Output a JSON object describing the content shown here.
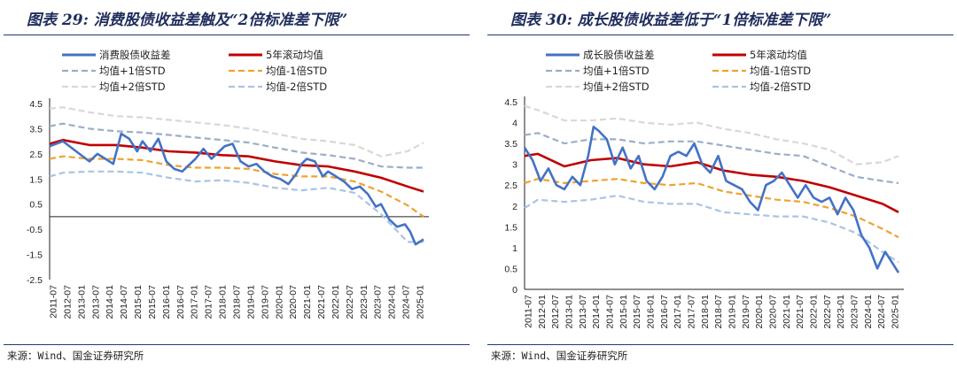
{
  "charts": [
    {
      "title": "图表 29: 消费股债收益差触及“2倍标准差下限”",
      "source": "来源：Wind、国金证券研究所",
      "chart_data": {
        "type": "line",
        "title": "图表 29: 消费股债收益差触及“2倍标准差下限”",
        "xlabel": "",
        "ylabel": "",
        "ylim": [
          -2.5,
          4.5
        ],
        "yticks": [
          "4.5",
          "3.5",
          "2.5",
          "1.5",
          "0.5",
          "-0.5",
          "-1.5",
          "-2.5"
        ],
        "xticks": [
          "2011-07",
          "2012-07",
          "2013-01",
          "2013-07",
          "2014-01",
          "2014-07",
          "2015-01",
          "2015-07",
          "2016-01",
          "2016-07",
          "2017-01",
          "2017-07",
          "2018-01",
          "2018-07",
          "2019-01",
          "2019-07",
          "2020-01",
          "2020-07",
          "2021-01",
          "2021-07",
          "2022-01",
          "2022-07",
          "2023-01",
          "2023-07",
          "2024-01",
          "2024-07",
          "2025-01"
        ],
        "x_start": 2011.5,
        "x_end": 2025.6,
        "grid": false,
        "legend_position": "top",
        "legend": [
          "消费股债收益差",
          "5年滚动均值",
          "均值+1倍STD",
          "均值-1倍STD",
          "均值+2倍STD",
          "均值-2倍STD"
        ],
        "series": [
          {
            "name": "消费股债收益差",
            "color": "#4472c4",
            "style": "solid",
            "x": [
              2011.5,
              2012.0,
              2012.5,
              2013.0,
              2013.3,
              2013.6,
              2013.9,
              2014.2,
              2014.5,
              2014.8,
              2015.0,
              2015.3,
              2015.6,
              2015.9,
              2016.2,
              2016.5,
              2016.8,
              2017.0,
              2017.3,
              2017.6,
              2017.9,
              2018.1,
              2018.4,
              2018.7,
              2019.0,
              2019.3,
              2019.6,
              2019.9,
              2020.2,
              2020.5,
              2020.8,
              2021.0,
              2021.2,
              2021.5,
              2021.8,
              2022.0,
              2022.3,
              2022.6,
              2022.9,
              2023.2,
              2023.5,
              2023.8,
              2024.0,
              2024.3,
              2024.6,
              2024.9,
              2025.1,
              2025.3,
              2025.6
            ],
            "values": [
              2.8,
              3.0,
              2.6,
              2.2,
              2.5,
              2.3,
              2.1,
              3.3,
              3.1,
              2.6,
              3.0,
              2.6,
              3.1,
              2.2,
              1.9,
              1.8,
              2.1,
              2.3,
              2.7,
              2.3,
              2.6,
              2.8,
              2.9,
              2.2,
              2.0,
              2.1,
              1.8,
              1.6,
              1.5,
              1.3,
              1.7,
              2.1,
              2.3,
              2.2,
              1.6,
              1.8,
              1.6,
              1.4,
              1.1,
              1.2,
              0.9,
              0.4,
              0.5,
              -0.1,
              -0.4,
              -0.3,
              -0.6,
              -1.1,
              -0.9
            ]
          },
          {
            "name": "5年滚动均值",
            "color": "#c00000",
            "style": "solid",
            "x": [
              2011.5,
              2012.0,
              2013.0,
              2014.0,
              2015.0,
              2016.0,
              2017.0,
              2018.0,
              2019.0,
              2020.0,
              2021.0,
              2022.0,
              2023.0,
              2024.0,
              2025.0,
              2025.6
            ],
            "values": [
              2.9,
              3.05,
              2.85,
              2.85,
              2.75,
              2.6,
              2.55,
              2.45,
              2.4,
              2.2,
              2.05,
              2.0,
              1.8,
              1.55,
              1.2,
              1.0
            ]
          },
          {
            "name": "均值+1倍STD",
            "color": "#9aaec8",
            "style": "dash",
            "x": [
              2011.5,
              2012.0,
              2013.0,
              2014.0,
              2015.0,
              2016.0,
              2017.0,
              2018.0,
              2019.0,
              2020.0,
              2021.0,
              2022.0,
              2023.0,
              2024.0,
              2025.0,
              2025.6
            ],
            "values": [
              3.6,
              3.7,
              3.5,
              3.4,
              3.35,
              3.25,
              3.15,
              3.05,
              2.95,
              2.75,
              2.55,
              2.45,
              2.3,
              2.0,
              1.95,
              1.95
            ]
          },
          {
            "name": "均值-1倍STD",
            "color": "#f0a22e",
            "style": "dash",
            "x": [
              2011.5,
              2012.0,
              2013.0,
              2014.0,
              2015.0,
              2016.0,
              2017.0,
              2018.0,
              2019.0,
              2020.0,
              2021.0,
              2022.0,
              2023.0,
              2024.0,
              2025.0,
              2025.6
            ],
            "values": [
              2.3,
              2.4,
              2.3,
              2.3,
              2.25,
              2.05,
              1.95,
              1.95,
              1.9,
              1.7,
              1.6,
              1.6,
              1.4,
              1.0,
              0.45,
              0.0
            ]
          },
          {
            "name": "均值+2倍STD",
            "color": "#d8d8d8",
            "style": "dash",
            "x": [
              2011.5,
              2012.0,
              2013.0,
              2014.0,
              2015.0,
              2016.0,
              2017.0,
              2018.0,
              2019.0,
              2020.0,
              2021.0,
              2022.0,
              2023.0,
              2024.0,
              2025.0,
              2025.6
            ],
            "values": [
              4.3,
              4.35,
              4.15,
              4.0,
              3.95,
              3.85,
              3.75,
              3.65,
              3.5,
              3.3,
              3.1,
              3.0,
              2.85,
              2.4,
              2.6,
              2.95
            ]
          },
          {
            "name": "均值-2倍STD",
            "color": "#a9c4e4",
            "style": "dash",
            "x": [
              2011.5,
              2012.0,
              2013.0,
              2014.0,
              2015.0,
              2016.0,
              2017.0,
              2018.0,
              2019.0,
              2020.0,
              2021.0,
              2022.0,
              2023.0,
              2024.0,
              2025.0,
              2025.6
            ],
            "values": [
              1.6,
              1.75,
              1.8,
              1.8,
              1.75,
              1.55,
              1.4,
              1.45,
              1.35,
              1.15,
              1.05,
              1.15,
              0.95,
              0.1,
              -1.0,
              -1.0
            ]
          }
        ]
      }
    },
    {
      "title": "图表 30: 成长股债收益差低于“1倍标准差下限”",
      "source": "来源：Wind、国金证券研究所",
      "chart_data": {
        "type": "line",
        "title": "图表 30: 成长股债收益差低于“1倍标准差下限”",
        "xlabel": "",
        "ylabel": "",
        "ylim": [
          0,
          4.5
        ],
        "yticks": [
          "4.5",
          "4",
          "3.5",
          "3",
          "2.5",
          "2",
          "1.5",
          "1",
          "0.5",
          "0"
        ],
        "xticks": [
          "2011-07",
          "2012-01",
          "2012-07",
          "2013-01",
          "2013-07",
          "2014-01",
          "2014-07",
          "2015-01",
          "2015-07",
          "2016-01",
          "2016-07",
          "2017-01",
          "2017-07",
          "2018-01",
          "2018-07",
          "2019-01",
          "2019-07",
          "2020-01",
          "2020-07",
          "2021-01",
          "2021-07",
          "2022-01",
          "2022-07",
          "2023-01",
          "2023-07",
          "2024-01",
          "2024-07",
          "2025-01"
        ],
        "x_start": 2011.5,
        "x_end": 2025.6,
        "grid": false,
        "legend_position": "top",
        "legend": [
          "成长股债收益差",
          "5年滚动均值",
          "均值+1倍STD",
          "均值-1倍STD",
          "均值+2倍STD",
          "均值-2倍STD"
        ],
        "series": [
          {
            "name": "成长股债收益差",
            "color": "#4472c4",
            "style": "solid",
            "x": [
              2011.5,
              2011.8,
              2012.1,
              2012.4,
              2012.7,
              2013.0,
              2013.3,
              2013.6,
              2013.9,
              2014.1,
              2014.3,
              2014.6,
              2014.9,
              2015.2,
              2015.5,
              2015.8,
              2016.1,
              2016.4,
              2016.7,
              2017.0,
              2017.3,
              2017.6,
              2017.9,
              2018.2,
              2018.5,
              2018.8,
              2019.1,
              2019.4,
              2019.7,
              2020.0,
              2020.3,
              2020.6,
              2020.9,
              2021.2,
              2021.5,
              2021.8,
              2022.1,
              2022.4,
              2022.7,
              2023.0,
              2023.3,
              2023.6,
              2023.9,
              2024.2,
              2024.5,
              2024.8,
              2025.1,
              2025.4,
              2025.6
            ],
            "values": [
              3.4,
              3.1,
              2.6,
              2.9,
              2.5,
              2.4,
              2.7,
              2.5,
              3.2,
              3.9,
              3.8,
              3.6,
              3.0,
              3.4,
              2.9,
              3.2,
              2.6,
              2.4,
              2.7,
              3.2,
              3.3,
              3.2,
              3.5,
              3.0,
              2.8,
              3.2,
              2.6,
              2.5,
              2.4,
              2.1,
              1.9,
              2.5,
              2.6,
              2.8,
              2.5,
              2.2,
              2.5,
              2.2,
              2.1,
              2.2,
              1.8,
              2.2,
              1.9,
              1.3,
              1.0,
              0.5,
              0.9,
              0.6,
              0.4
            ]
          },
          {
            "name": "5年滚动均值",
            "color": "#c00000",
            "style": "solid",
            "x": [
              2011.5,
              2012.0,
              2013.0,
              2014.0,
              2015.0,
              2016.0,
              2017.0,
              2018.0,
              2019.0,
              2020.0,
              2021.0,
              2022.0,
              2023.0,
              2024.0,
              2025.0,
              2025.6
            ],
            "values": [
              3.2,
              3.25,
              2.95,
              3.1,
              3.15,
              3.0,
              2.95,
              3.05,
              2.85,
              2.75,
              2.7,
              2.6,
              2.45,
              2.25,
              2.05,
              1.85
            ]
          },
          {
            "name": "均值+1倍STD",
            "color": "#9aaec8",
            "style": "dash",
            "x": [
              2011.5,
              2012.0,
              2013.0,
              2014.0,
              2015.0,
              2016.0,
              2017.0,
              2018.0,
              2019.0,
              2020.0,
              2021.0,
              2022.0,
              2023.0,
              2024.0,
              2025.0,
              2025.6
            ],
            "values": [
              3.7,
              3.75,
              3.5,
              3.6,
              3.6,
              3.5,
              3.55,
              3.55,
              3.45,
              3.35,
              3.25,
              3.2,
              2.95,
              2.7,
              2.6,
              2.55
            ]
          },
          {
            "name": "均值-1倍STD",
            "color": "#f0a22e",
            "style": "dash",
            "x": [
              2011.5,
              2012.0,
              2013.0,
              2014.0,
              2015.0,
              2016.0,
              2017.0,
              2018.0,
              2019.0,
              2020.0,
              2021.0,
              2022.0,
              2023.0,
              2024.0,
              2025.0,
              2025.6
            ],
            "values": [
              2.55,
              2.65,
              2.55,
              2.6,
              2.65,
              2.55,
              2.5,
              2.55,
              2.35,
              2.25,
              2.15,
              2.1,
              1.95,
              1.75,
              1.45,
              1.25
            ]
          },
          {
            "name": "均值+2倍STD",
            "color": "#d8d8d8",
            "style": "dash",
            "x": [
              2011.5,
              2012.0,
              2013.0,
              2014.0,
              2015.0,
              2016.0,
              2017.0,
              2018.0,
              2019.0,
              2020.0,
              2021.0,
              2022.0,
              2023.0,
              2024.0,
              2025.0,
              2025.6
            ],
            "values": [
              4.4,
              4.3,
              4.05,
              4.05,
              4.1,
              4.0,
              3.95,
              4.0,
              3.85,
              3.75,
              3.6,
              3.5,
              3.35,
              3.0,
              3.05,
              3.2
            ]
          },
          {
            "name": "均值-2倍STD",
            "color": "#a9c4e4",
            "style": "dash",
            "x": [
              2011.5,
              2012.0,
              2013.0,
              2014.0,
              2015.0,
              2016.0,
              2017.0,
              2018.0,
              2019.0,
              2020.0,
              2021.0,
              2022.0,
              2023.0,
              2024.0,
              2025.0,
              2025.6
            ],
            "values": [
              1.95,
              2.15,
              2.1,
              2.15,
              2.25,
              2.1,
              2.05,
              2.05,
              1.85,
              1.8,
              1.75,
              1.75,
              1.6,
              1.35,
              0.9,
              0.65
            ]
          }
        ]
      }
    }
  ]
}
